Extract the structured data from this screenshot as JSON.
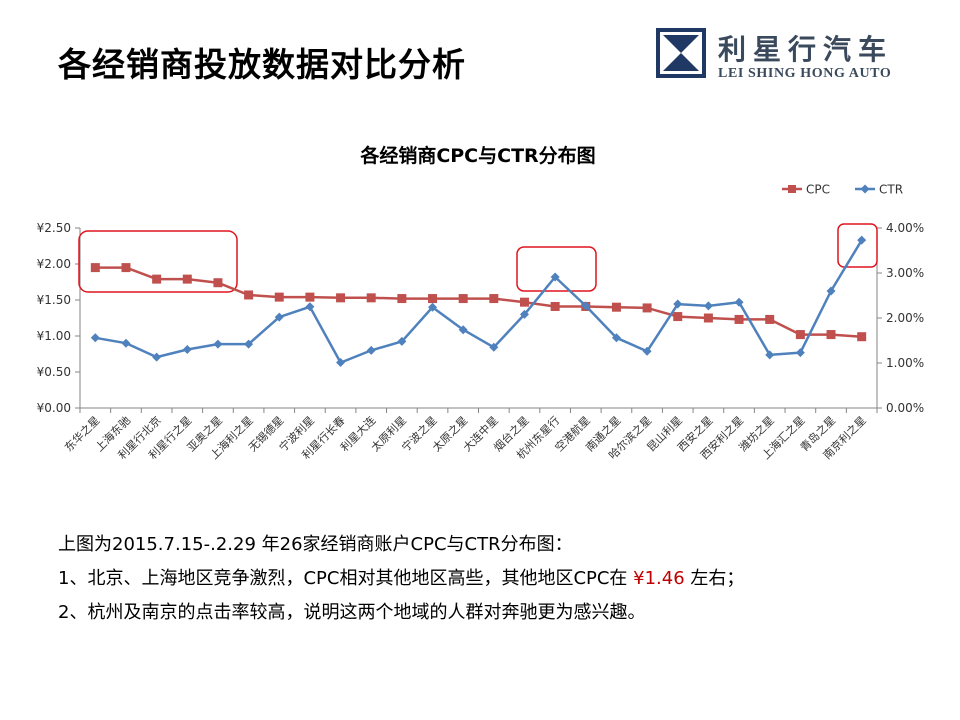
{
  "slide": {
    "title": "各经销商投放数据对比分析"
  },
  "logo": {
    "cn": "利星行汽车",
    "en": "LEI SHING HONG AUTO",
    "brand_color": "#1f3864"
  },
  "chart_data": {
    "type": "line",
    "title": "各经销商CPC与CTR分布图",
    "categories": [
      "东华之星",
      "上海东驰",
      "利星行北京",
      "利星行之星",
      "亚奥之星",
      "上海利之星",
      "无锡德星",
      "宁波利星",
      "利星行长春",
      "利星大连",
      "太原利星",
      "宁波之星",
      "太原之星",
      "大连中星",
      "烟台之星",
      "杭州东星行",
      "空港航星",
      "南通之星",
      "哈尔滨之星",
      "昆山利星",
      "西安之星",
      "西安利之星",
      "潍坊之星",
      "上海汇之星",
      "青岛之星",
      "南京利之星"
    ],
    "series": [
      {
        "name": "CPC",
        "axis": "left",
        "color": "#c0504d",
        "marker": "square",
        "values": [
          1.95,
          1.95,
          1.79,
          1.79,
          1.74,
          1.57,
          1.54,
          1.54,
          1.53,
          1.53,
          1.52,
          1.52,
          1.52,
          1.52,
          1.47,
          1.41,
          1.41,
          1.4,
          1.39,
          1.27,
          1.25,
          1.23,
          1.23,
          1.02,
          1.02,
          0.99
        ]
      },
      {
        "name": "CTR",
        "axis": "right",
        "color": "#4f81bd",
        "marker": "diamond",
        "values": [
          1.56,
          1.44,
          1.13,
          1.3,
          1.42,
          1.42,
          2.02,
          2.25,
          1.01,
          1.28,
          1.48,
          2.24,
          1.74,
          1.35,
          2.08,
          2.91,
          2.27,
          1.56,
          1.26,
          2.31,
          2.27,
          2.35,
          1.18,
          1.23,
          2.6,
          3.73
        ]
      }
    ],
    "y_left": {
      "min": 0,
      "max": 2.5,
      "ticks": [
        "¥0.00",
        "¥0.50",
        "¥1.00",
        "¥1.50",
        "¥2.00",
        "¥2.50"
      ]
    },
    "y_right": {
      "min": 0,
      "max": 4,
      "ticks": [
        "0.00%",
        "1.00%",
        "2.00%",
        "3.00%",
        "4.00%"
      ]
    },
    "legend": {
      "placement": "top-right",
      "items": [
        "CPC",
        "CTR"
      ]
    },
    "grid": false,
    "highlight_color": "#e0141e"
  },
  "notes": {
    "line1": "上图为2015.7.15-.2.29  年26家经销商账户CPC与CTR分布图：",
    "line2_pre": "1、北京、上海地区竞争激烈，CPC相对其他地区高些，其他地区CPC在 ",
    "line2_hl": "¥1.46",
    "line2_post": " 左右；",
    "line3": "2、杭州及南京的点击率较高，说明这两个地域的人群对奔驰更为感兴趣。"
  }
}
